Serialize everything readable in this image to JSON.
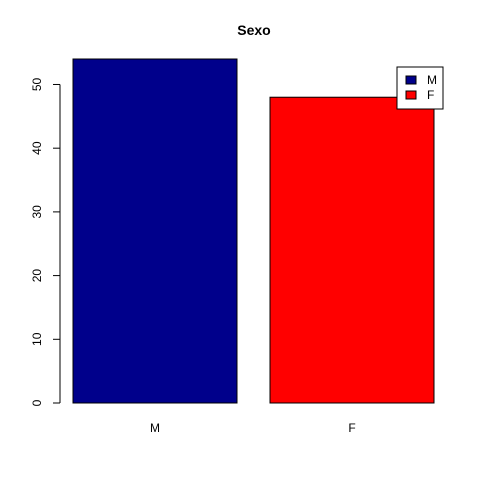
{
  "chart_data": {
    "type": "bar",
    "title": "Sexo",
    "xlabel": "",
    "ylabel": "",
    "categories": [
      "M",
      "F"
    ],
    "values": [
      54,
      48
    ],
    "colors": [
      "#00008B",
      "#FF0000"
    ],
    "ylim": [
      0,
      54
    ],
    "yticks": [
      0,
      10,
      20,
      30,
      40,
      50
    ],
    "legend": {
      "position": "top-right",
      "entries": [
        {
          "label": "M",
          "color": "#00008B"
        },
        {
          "label": "F",
          "color": "#FF0000"
        }
      ]
    },
    "grid": false
  }
}
